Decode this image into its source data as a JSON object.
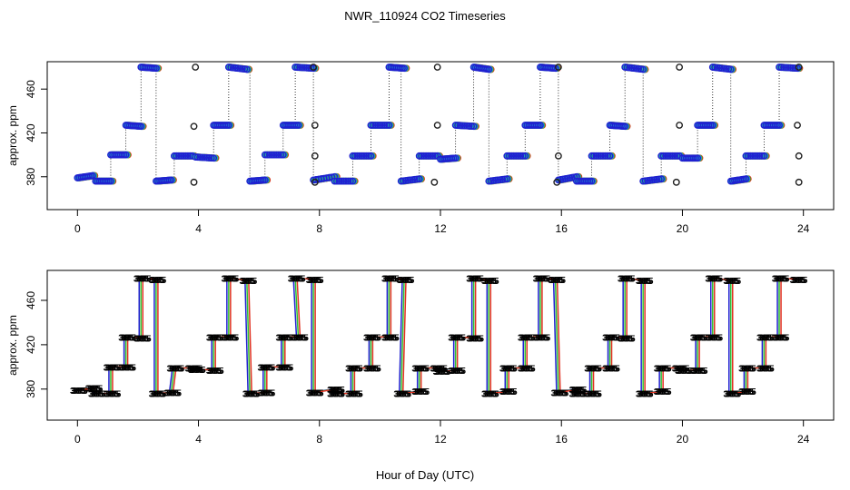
{
  "figure": {
    "title": "NWR_110924  CO2 Timeseries",
    "xlabel": "Hour of Day (UTC)"
  },
  "colors": {
    "axis": "#000000",
    "series": [
      "#2020d0",
      "#20a0d0",
      "#30c030",
      "#e03020",
      "#202020",
      "#00d0d0"
    ]
  },
  "chart_data": [
    {
      "type": "scatter",
      "panel": "top",
      "ylabel": "approx. ppm",
      "xlim": [
        -1,
        25
      ],
      "ylim": [
        350,
        485
      ],
      "xticks": [
        0,
        4,
        8,
        12,
        16,
        20,
        24
      ],
      "xtick_labels": [
        "0",
        "4",
        "8",
        "12",
        "16",
        "20",
        "24"
      ],
      "yticks": [
        380,
        420,
        460
      ],
      "ytick_labels": [
        "380",
        "420",
        "460"
      ],
      "marker": "open circle",
      "runs": [
        {
          "x0": 0.0,
          "x1": 0.5,
          "y0": 379,
          "y1": 381
        },
        {
          "x0": 0.6,
          "x1": 1.1,
          "y0": 376,
          "y1": 376
        },
        {
          "x0": 1.1,
          "x1": 1.6,
          "y0": 400,
          "y1": 400
        },
        {
          "x0": 1.6,
          "x1": 2.1,
          "y0": 427,
          "y1": 426
        },
        {
          "x0": 2.1,
          "x1": 2.6,
          "y0": 480,
          "y1": 479
        },
        {
          "x0": 2.6,
          "x1": 3.1,
          "y0": 376,
          "y1": 377
        },
        {
          "x0": 3.2,
          "x1": 3.8,
          "y0": 399,
          "y1": 399
        },
        {
          "x0": 3.9,
          "x1": 4.5,
          "y0": 398,
          "y1": 397
        },
        {
          "x0": 4.5,
          "x1": 5.0,
          "y0": 427,
          "y1": 427
        },
        {
          "x0": 5.0,
          "x1": 5.6,
          "y0": 480,
          "y1": 478
        },
        {
          "x0": 5.7,
          "x1": 6.2,
          "y0": 376,
          "y1": 377
        },
        {
          "x0": 6.2,
          "x1": 6.8,
          "y0": 400,
          "y1": 400
        },
        {
          "x0": 6.8,
          "x1": 7.3,
          "y0": 427,
          "y1": 427
        },
        {
          "x0": 7.2,
          "x1": 7.8,
          "y0": 480,
          "y1": 479
        },
        {
          "x0": 7.8,
          "x1": 8.5,
          "y0": 377,
          "y1": 380
        },
        {
          "x0": 8.5,
          "x1": 9.1,
          "y0": 376,
          "y1": 376
        },
        {
          "x0": 9.1,
          "x1": 9.7,
          "y0": 399,
          "y1": 399
        },
        {
          "x0": 9.7,
          "x1": 10.3,
          "y0": 427,
          "y1": 427
        },
        {
          "x0": 10.3,
          "x1": 10.8,
          "y0": 480,
          "y1": 479
        },
        {
          "x0": 10.7,
          "x1": 11.3,
          "y0": 376,
          "y1": 378
        },
        {
          "x0": 11.3,
          "x1": 11.9,
          "y0": 399,
          "y1": 399
        },
        {
          "x0": 12.0,
          "x1": 12.5,
          "y0": 396,
          "y1": 397
        },
        {
          "x0": 12.5,
          "x1": 13.1,
          "y0": 427,
          "y1": 426
        },
        {
          "x0": 13.1,
          "x1": 13.6,
          "y0": 480,
          "y1": 478
        },
        {
          "x0": 13.6,
          "x1": 14.2,
          "y0": 376,
          "y1": 378
        },
        {
          "x0": 14.2,
          "x1": 14.8,
          "y0": 399,
          "y1": 399
        },
        {
          "x0": 14.8,
          "x1": 15.3,
          "y0": 427,
          "y1": 427
        },
        {
          "x0": 15.3,
          "x1": 15.8,
          "y0": 480,
          "y1": 479
        },
        {
          "x0": 15.9,
          "x1": 16.5,
          "y0": 377,
          "y1": 380
        },
        {
          "x0": 16.5,
          "x1": 17.0,
          "y0": 376,
          "y1": 376
        },
        {
          "x0": 17.0,
          "x1": 17.6,
          "y0": 399,
          "y1": 399
        },
        {
          "x0": 17.6,
          "x1": 18.1,
          "y0": 427,
          "y1": 426
        },
        {
          "x0": 18.1,
          "x1": 18.7,
          "y0": 480,
          "y1": 478
        },
        {
          "x0": 18.7,
          "x1": 19.3,
          "y0": 376,
          "y1": 378
        },
        {
          "x0": 19.3,
          "x1": 19.9,
          "y0": 399,
          "y1": 399
        },
        {
          "x0": 20.0,
          "x1": 20.5,
          "y0": 397,
          "y1": 397
        },
        {
          "x0": 20.5,
          "x1": 21.0,
          "y0": 427,
          "y1": 427
        },
        {
          "x0": 21.0,
          "x1": 21.6,
          "y0": 480,
          "y1": 478
        },
        {
          "x0": 21.6,
          "x1": 22.1,
          "y0": 376,
          "y1": 378
        },
        {
          "x0": 22.1,
          "x1": 22.7,
          "y0": 399,
          "y1": 399
        },
        {
          "x0": 22.7,
          "x1": 23.2,
          "y0": 427,
          "y1": 427
        },
        {
          "x0": 23.2,
          "x1": 23.8,
          "y0": 480,
          "y1": 479
        }
      ],
      "black_markers": [
        {
          "x": 3.85,
          "y": 375
        },
        {
          "x": 3.85,
          "y": 426
        },
        {
          "x": 3.9,
          "y": 480
        },
        {
          "x": 7.85,
          "y": 375
        },
        {
          "x": 7.85,
          "y": 399
        },
        {
          "x": 7.85,
          "y": 427
        },
        {
          "x": 7.8,
          "y": 480
        },
        {
          "x": 11.8,
          "y": 375
        },
        {
          "x": 11.9,
          "y": 427
        },
        {
          "x": 11.9,
          "y": 480
        },
        {
          "x": 15.85,
          "y": 375
        },
        {
          "x": 15.9,
          "y": 399
        },
        {
          "x": 15.9,
          "y": 480
        },
        {
          "x": 19.8,
          "y": 375
        },
        {
          "x": 19.9,
          "y": 427
        },
        {
          "x": 19.9,
          "y": 480
        },
        {
          "x": 23.85,
          "y": 375
        },
        {
          "x": 23.85,
          "y": 399
        },
        {
          "x": 23.8,
          "y": 427
        },
        {
          "x": 23.85,
          "y": 480
        }
      ]
    },
    {
      "type": "line",
      "panel": "bottom",
      "ylabel": "approx. ppm",
      "xlim": [
        -1,
        25
      ],
      "ylim": [
        352,
        487
      ],
      "xticks": [
        0,
        4,
        8,
        12,
        16,
        20,
        24
      ],
      "xtick_labels": [
        "0",
        "4",
        "8",
        "12",
        "16",
        "20",
        "24"
      ],
      "yticks": [
        380,
        420,
        460
      ],
      "ytick_labels": [
        "380",
        "420",
        "460"
      ],
      "marker_text": "385",
      "x": [
        0.0,
        0.5,
        0.6,
        1.1,
        1.1,
        1.6,
        1.6,
        2.1,
        2.1,
        2.6,
        2.6,
        3.1,
        3.2,
        3.8,
        3.9,
        4.5,
        4.5,
        5.0,
        5.0,
        5.6,
        5.7,
        6.2,
        6.2,
        6.8,
        6.8,
        7.3,
        7.2,
        7.8,
        7.8,
        8.5,
        8.5,
        9.1,
        9.1,
        9.7,
        9.7,
        10.3,
        10.3,
        10.8,
        10.7,
        11.3,
        11.3,
        11.9,
        12.0,
        12.5,
        12.5,
        13.1,
        13.1,
        13.6,
        13.6,
        14.2,
        14.2,
        14.8,
        14.8,
        15.3,
        15.3,
        15.8,
        15.9,
        16.5,
        16.5,
        17.0,
        17.0,
        17.6,
        17.6,
        18.1,
        18.1,
        18.7,
        18.7,
        19.3,
        19.3,
        19.9,
        20.0,
        20.5,
        20.5,
        21.0,
        21.0,
        21.6,
        21.6,
        22.1,
        22.1,
        22.7,
        22.7,
        23.2,
        23.2,
        23.8
      ],
      "y": [
        379,
        381,
        376,
        376,
        400,
        400,
        427,
        426,
        480,
        479,
        376,
        377,
        399,
        399,
        398,
        397,
        427,
        427,
        480,
        478,
        376,
        377,
        400,
        400,
        427,
        427,
        480,
        479,
        377,
        380,
        376,
        376,
        399,
        399,
        427,
        427,
        480,
        479,
        376,
        378,
        399,
        399,
        396,
        397,
        427,
        426,
        480,
        478,
        376,
        378,
        399,
        399,
        427,
        427,
        480,
        479,
        377,
        380,
        376,
        376,
        399,
        399,
        427,
        426,
        480,
        478,
        376,
        378,
        399,
        399,
        397,
        397,
        427,
        427,
        480,
        478,
        376,
        378,
        399,
        399,
        427,
        427,
        480,
        479
      ]
    }
  ]
}
